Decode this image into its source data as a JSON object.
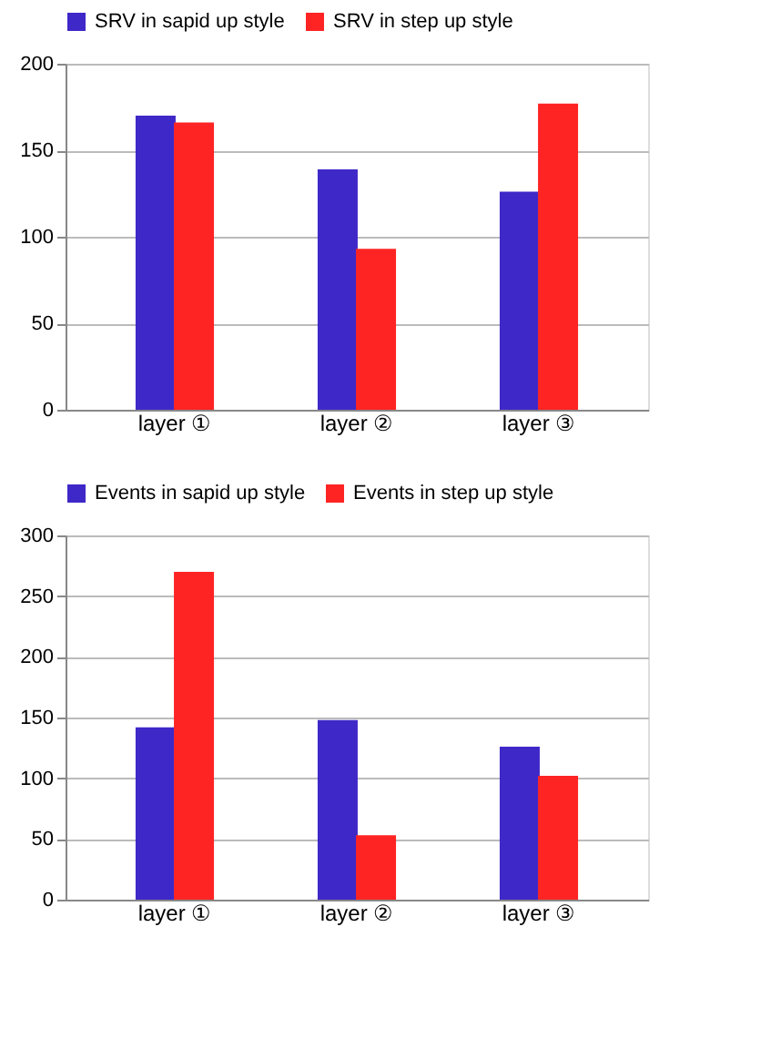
{
  "chart_data": [
    {
      "type": "bar",
      "categories": [
        "layer ①",
        "layer ②",
        "layer ③"
      ],
      "ylim": [
        0,
        200
      ],
      "yticks": [
        0,
        50,
        100,
        150,
        200
      ],
      "grid": "y",
      "legend": "top",
      "series": [
        {
          "name": "SRV in sapid up style",
          "color": "#3f28c8",
          "values": [
            170,
            139,
            126
          ]
        },
        {
          "name": "SRV in step up style",
          "color": "#ff2424",
          "values": [
            166,
            93,
            177
          ]
        }
      ]
    },
    {
      "type": "bar",
      "categories": [
        "layer ①",
        "layer ②",
        "layer ③"
      ],
      "ylim": [
        0,
        300
      ],
      "yticks": [
        0,
        50,
        100,
        150,
        200,
        250,
        300
      ],
      "grid": "y",
      "legend": "top",
      "series": [
        {
          "name": "Events in sapid up style",
          "color": "#3f28c8",
          "values": [
            142,
            148,
            126
          ]
        },
        {
          "name": "Events in step up style",
          "color": "#ff2424",
          "values": [
            270,
            53,
            102
          ]
        }
      ]
    }
  ]
}
